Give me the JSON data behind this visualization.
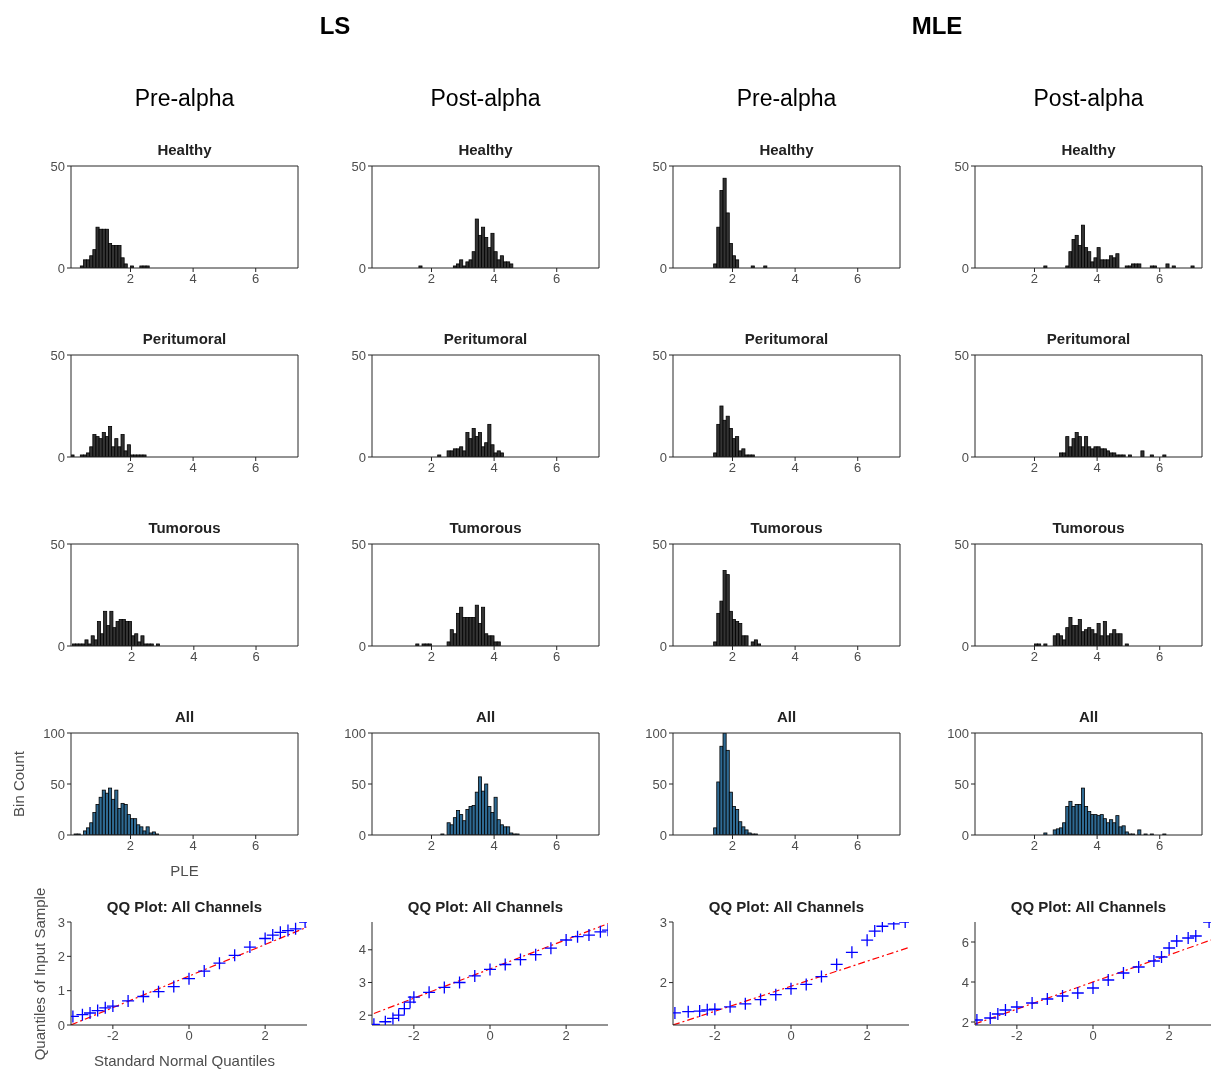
{
  "chart_data": [
    {
      "type": "histogram",
      "title": "Healthy",
      "annotations": [
        "LS",
        "Pre-alpha"
      ],
      "bins": [
        0.4,
        0.5,
        0.6,
        0.7,
        0.8,
        0.9,
        1.0,
        1.1,
        1.2,
        1.3,
        1.4,
        1.5,
        1.6,
        1.7,
        1.8,
        1.9,
        2.0,
        2.1,
        2.2,
        2.3,
        2.4,
        2.5,
        2.6
      ],
      "values": [
        1,
        4,
        4,
        6,
        9,
        20,
        19,
        19,
        19,
        12,
        11,
        11,
        11,
        5,
        2,
        0,
        1,
        0,
        0,
        1,
        1,
        1
      ],
      "color": "#333333",
      "xlim": [
        0.1,
        7.35
      ],
      "xticks": [
        2,
        4,
        6
      ],
      "ylim": [
        0,
        50
      ],
      "yticks": [
        0,
        50
      ]
    },
    {
      "type": "histogram",
      "title": "Healthy",
      "annotations": [
        "Post-alpha"
      ],
      "bins": [
        1.6,
        1.7,
        1.8,
        1.9,
        2.0,
        2.1,
        2.2,
        2.3,
        2.4,
        2.5,
        2.6,
        2.7,
        2.8,
        2.9,
        3.0,
        3.1,
        3.2,
        3.3,
        3.4,
        3.5,
        3.6,
        3.7,
        3.8,
        3.9,
        4.0,
        4.1,
        4.2,
        4.3,
        4.4,
        4.5,
        4.6
      ],
      "values": [
        1,
        0,
        0,
        0,
        0,
        0,
        0,
        0,
        0,
        0,
        0,
        1,
        2,
        4,
        1,
        3,
        4,
        8,
        24,
        16,
        20,
        15,
        10,
        17,
        8,
        4,
        6,
        3,
        3,
        2
      ],
      "color": "#333333",
      "xlim": [
        0.1,
        7.35
      ],
      "xticks": [
        2,
        4,
        6
      ],
      "ylim": [
        0,
        50
      ],
      "yticks": [
        0,
        50
      ]
    },
    {
      "type": "histogram",
      "title": "Healthy",
      "annotations": [
        "MLE",
        "Pre-alpha"
      ],
      "bins": [
        1.4,
        1.5,
        1.6,
        1.7,
        1.8,
        1.9,
        2.0,
        2.1,
        2.2,
        2.3,
        2.4,
        2.5,
        2.6,
        2.7,
        2.8,
        2.9,
        3.0,
        3.1
      ],
      "values": [
        2,
        20,
        38,
        44,
        27,
        12,
        6,
        4,
        0,
        0,
        0,
        0,
        1,
        0,
        0,
        0,
        1
      ],
      "color": "#333333",
      "xlim": [
        0.1,
        7.35
      ],
      "xticks": [
        2,
        4,
        6
      ],
      "ylim": [
        0,
        50
      ],
      "yticks": [
        0,
        50
      ]
    },
    {
      "type": "histogram",
      "title": "Healthy",
      "annotations": [
        "Post-alpha"
      ],
      "bins": [
        2.3,
        2.4,
        2.5,
        2.6,
        2.7,
        2.8,
        2.9,
        3.0,
        3.1,
        3.2,
        3.3,
        3.4,
        3.5,
        3.6,
        3.7,
        3.8,
        3.9,
        4.0,
        4.1,
        4.2,
        4.3,
        4.4,
        4.5,
        4.6,
        4.7,
        4.8,
        4.9,
        5.0,
        5.1,
        5.2,
        5.3,
        5.4,
        5.5,
        5.6,
        5.7,
        5.8,
        5.9,
        6.0,
        6.1,
        6.2,
        6.3,
        6.4,
        6.5,
        6.6,
        6.7,
        6.8,
        6.9,
        7.0,
        7.1
      ],
      "values": [
        1,
        0,
        0,
        0,
        0,
        0,
        0,
        1,
        8,
        14,
        16,
        11,
        21,
        10,
        8,
        3,
        5,
        10,
        4,
        4,
        4,
        6,
        5,
        7,
        0,
        0,
        1,
        1,
        2,
        2,
        2,
        0,
        0,
        0,
        1,
        1,
        0,
        0,
        0,
        2,
        0,
        1,
        0,
        0,
        0,
        0,
        0,
        1
      ],
      "color": "#333333",
      "xlim": [
        0.1,
        7.35
      ],
      "xticks": [
        2,
        4,
        6
      ],
      "ylim": [
        0,
        50
      ],
      "yticks": [
        0,
        50
      ]
    },
    {
      "type": "histogram",
      "title": "Peritumoral",
      "bins": [
        0.1,
        0.2,
        0.3,
        0.4,
        0.5,
        0.6,
        0.7,
        0.8,
        0.9,
        1.0,
        1.1,
        1.2,
        1.3,
        1.4,
        1.5,
        1.6,
        1.7,
        1.8,
        1.9,
        2.0,
        2.1,
        2.2,
        2.3,
        2.4,
        2.5
      ],
      "values": [
        1,
        0,
        0,
        1,
        1,
        2,
        5,
        11,
        10,
        9,
        12,
        10,
        15,
        5,
        9,
        5,
        11,
        3,
        6,
        1,
        1,
        1,
        1,
        1
      ],
      "color": "#333333",
      "xlim": [
        0.1,
        7.35
      ],
      "xticks": [
        2,
        4,
        6
      ],
      "ylim": [
        0,
        50
      ],
      "yticks": [
        0,
        50
      ]
    },
    {
      "type": "histogram",
      "title": "Peritumoral",
      "bins": [
        2.2,
        2.3,
        2.4,
        2.5,
        2.6,
        2.7,
        2.8,
        2.9,
        3.0,
        3.1,
        3.2,
        3.3,
        3.4,
        3.5,
        3.6,
        3.7,
        3.8,
        3.9,
        4.0,
        4.1,
        4.2,
        4.3
      ],
      "values": [
        1,
        0,
        0,
        3,
        3,
        4,
        4,
        5,
        3,
        12,
        9,
        14,
        10,
        12,
        5,
        7,
        16,
        6,
        2,
        3,
        2
      ],
      "color": "#333333",
      "xlim": [
        0.1,
        7.35
      ],
      "xticks": [
        2,
        4,
        6
      ],
      "ylim": [
        0,
        50
      ],
      "yticks": [
        0,
        50
      ]
    },
    {
      "type": "histogram",
      "title": "Peritumoral",
      "bins": [
        1.4,
        1.5,
        1.6,
        1.7,
        1.8,
        1.9,
        2.0,
        2.1,
        2.2,
        2.3,
        2.4,
        2.5,
        2.6,
        2.7
      ],
      "values": [
        2,
        16,
        25,
        18,
        20,
        14,
        9,
        10,
        3,
        4,
        1,
        1,
        1
      ],
      "color": "#333333",
      "xlim": [
        0.1,
        7.35
      ],
      "xticks": [
        2,
        4,
        6
      ],
      "ylim": [
        0,
        50
      ],
      "yticks": [
        0,
        50
      ]
    },
    {
      "type": "histogram",
      "title": "Peritumoral",
      "bins": [
        2.8,
        2.9,
        3.0,
        3.1,
        3.2,
        3.3,
        3.4,
        3.5,
        3.6,
        3.7,
        3.8,
        3.9,
        4.0,
        4.1,
        4.2,
        4.3,
        4.4,
        4.5,
        4.6,
        4.7,
        4.8,
        4.9,
        5.0,
        5.1,
        5.2,
        5.3,
        5.4,
        5.5,
        5.6,
        5.7,
        5.8,
        5.9,
        6.0,
        6.1,
        6.2
      ],
      "values": [
        2,
        2,
        10,
        5,
        9,
        12,
        10,
        5,
        10,
        5,
        4,
        5,
        5,
        4,
        4,
        3,
        2,
        2,
        1,
        1,
        1,
        0,
        1,
        0,
        0,
        0,
        3,
        0,
        0,
        1,
        0,
        0,
        0,
        1
      ],
      "color": "#333333",
      "xlim": [
        0.1,
        7.35
      ],
      "xticks": [
        2,
        4,
        6
      ],
      "ylim": [
        0,
        50
      ],
      "yticks": [
        0,
        50
      ]
    },
    {
      "type": "histogram",
      "title": "Tumorous",
      "bins": [
        0.1,
        0.2,
        0.3,
        0.4,
        0.5,
        0.6,
        0.7,
        0.8,
        0.9,
        1.0,
        1.1,
        1.2,
        1.3,
        1.4,
        1.5,
        1.6,
        1.7,
        1.8,
        1.9,
        2.0,
        2.1,
        2.2,
        2.3,
        2.4,
        2.5,
        2.6,
        2.7,
        2.8,
        2.9
      ],
      "values": [
        1,
        1,
        1,
        1,
        3,
        1,
        5,
        3,
        12,
        6,
        17,
        10,
        17,
        9,
        12,
        13,
        13,
        12,
        12,
        5,
        6,
        2,
        5,
        1,
        1,
        1,
        0,
        1
      ],
      "color": "#333333",
      "xlim": [
        0.05,
        7.35
      ],
      "xticks": [
        2,
        4,
        6
      ],
      "ylim": [
        0,
        50
      ],
      "yticks": [
        0,
        50
      ]
    },
    {
      "type": "histogram",
      "title": "Tumorous",
      "bins": [
        1.5,
        1.6,
        1.7,
        1.8,
        1.9,
        2.0,
        2.1,
        2.2,
        2.3,
        2.4,
        2.5,
        2.6,
        2.7,
        2.8,
        2.9,
        3.0,
        3.1,
        3.2,
        3.3,
        3.4,
        3.5,
        3.6,
        3.7,
        3.8,
        3.9,
        4.0,
        4.1,
        4.2
      ],
      "values": [
        1,
        0,
        1,
        1,
        1,
        0,
        0,
        0,
        0,
        0,
        2,
        8,
        6,
        16,
        19,
        14,
        14,
        14,
        14,
        20,
        11,
        19,
        6,
        5,
        5,
        2,
        2
      ],
      "color": "#333333",
      "xlim": [
        0.1,
        7.35
      ],
      "xticks": [
        2,
        4,
        6
      ],
      "ylim": [
        0,
        50
      ],
      "yticks": [
        0,
        50
      ]
    },
    {
      "type": "histogram",
      "title": "Tumorous",
      "bins": [
        1.4,
        1.5,
        1.6,
        1.7,
        1.8,
        1.9,
        2.0,
        2.1,
        2.2,
        2.3,
        2.4,
        2.5,
        2.6,
        2.7,
        2.8,
        2.9
      ],
      "values": [
        2,
        16,
        22,
        37,
        35,
        17,
        13,
        12,
        11,
        5,
        5,
        0,
        2,
        3,
        1
      ],
      "color": "#333333",
      "xlim": [
        0.1,
        7.35
      ],
      "xticks": [
        2,
        4,
        6
      ],
      "ylim": [
        0,
        50
      ],
      "yticks": [
        0,
        50
      ]
    },
    {
      "type": "histogram",
      "title": "Tumorous",
      "bins": [
        2.0,
        2.1,
        2.2,
        2.3,
        2.4,
        2.5,
        2.6,
        2.7,
        2.8,
        2.9,
        3.0,
        3.1,
        3.2,
        3.3,
        3.4,
        3.5,
        3.6,
        3.7,
        3.8,
        3.9,
        4.0,
        4.1,
        4.2,
        4.3,
        4.4,
        4.5,
        4.6,
        4.7,
        4.8,
        4.9,
        5.0
      ],
      "values": [
        1,
        1,
        0,
        1,
        0,
        0,
        5,
        6,
        5,
        3,
        9,
        14,
        10,
        10,
        13,
        7,
        8,
        9,
        8,
        6,
        11,
        5,
        12,
        5,
        6,
        8,
        6,
        6,
        0,
        1
      ],
      "color": "#333333",
      "xlim": [
        0.1,
        7.35
      ],
      "xticks": [
        2,
        4,
        6
      ],
      "ylim": [
        0,
        50
      ],
      "yticks": [
        0,
        50
      ]
    },
    {
      "type": "histogram",
      "title": "All",
      "xlabel": "PLE",
      "ylabel": "Bin Count",
      "bins": [
        0.2,
        0.3,
        0.4,
        0.5,
        0.6,
        0.7,
        0.8,
        0.9,
        1.0,
        1.1,
        1.2,
        1.3,
        1.4,
        1.5,
        1.6,
        1.7,
        1.8,
        1.9,
        2.0,
        2.1,
        2.2,
        2.3,
        2.4,
        2.5,
        2.6,
        2.7,
        2.8,
        2.9
      ],
      "values": [
        1,
        1,
        0,
        4,
        7,
        12,
        22,
        30,
        37,
        44,
        41,
        46,
        35,
        44,
        26,
        31,
        30,
        20,
        16,
        16,
        10,
        8,
        4,
        8,
        2,
        3,
        1
      ],
      "color": "#2f6a93",
      "xlim": [
        0.1,
        7.35
      ],
      "xticks": [
        2,
        4,
        6
      ],
      "ylim": [
        0,
        100
      ],
      "yticks": [
        0,
        50,
        100
      ]
    },
    {
      "type": "histogram",
      "title": "All",
      "bins": [
        2.3,
        2.4,
        2.5,
        2.6,
        2.7,
        2.8,
        2.9,
        3.0,
        3.1,
        3.2,
        3.3,
        3.4,
        3.5,
        3.6,
        3.7,
        3.8,
        3.9,
        4.0,
        4.1,
        4.2,
        4.3,
        4.4,
        4.5,
        4.6,
        4.7,
        4.8
      ],
      "values": [
        1,
        0,
        12,
        10,
        17,
        24,
        20,
        14,
        25,
        28,
        29,
        42,
        57,
        43,
        50,
        28,
        22,
        37,
        15,
        10,
        8,
        8,
        2,
        1,
        1
      ],
      "color": "#2f6a93",
      "xlim": [
        0.1,
        7.35
      ],
      "xticks": [
        2,
        4,
        6
      ],
      "ylim": [
        0,
        100
      ],
      "yticks": [
        0,
        50,
        100
      ]
    },
    {
      "type": "histogram",
      "title": "All",
      "bins": [
        1.4,
        1.5,
        1.6,
        1.7,
        1.8,
        1.9,
        2.0,
        2.1,
        2.2,
        2.3,
        2.4,
        2.5,
        2.6,
        2.7,
        2.8
      ],
      "values": [
        7,
        52,
        87,
        100,
        83,
        42,
        28,
        25,
        13,
        8,
        5,
        2,
        1,
        1
      ],
      "color": "#2f6a93",
      "xlim": [
        0.1,
        7.35
      ],
      "xticks": [
        2,
        4,
        6
      ],
      "ylim": [
        0,
        100
      ],
      "yticks": [
        0,
        50,
        100
      ]
    },
    {
      "type": "histogram",
      "title": "All",
      "bins": [
        2.3,
        2.4,
        2.5,
        2.6,
        2.7,
        2.8,
        2.9,
        3.0,
        3.1,
        3.2,
        3.3,
        3.4,
        3.5,
        3.6,
        3.7,
        3.8,
        3.9,
        4.0,
        4.1,
        4.2,
        4.3,
        4.4,
        4.5,
        4.6,
        4.7,
        4.8,
        4.9,
        5.0,
        5.1,
        5.2,
        5.3,
        5.4,
        5.5,
        5.6,
        5.7,
        5.8,
        5.9,
        6.0,
        6.1,
        6.2
      ],
      "values": [
        2,
        0,
        0,
        5,
        6,
        7,
        12,
        28,
        33,
        28,
        30,
        30,
        46,
        28,
        23,
        20,
        20,
        19,
        20,
        16,
        12,
        15,
        12,
        19,
        8,
        9,
        3,
        1,
        1,
        0,
        5,
        0,
        1,
        0,
        1,
        0,
        0,
        0,
        1
      ],
      "color": "#2f6a93",
      "xlim": [
        0.1,
        7.35
      ],
      "xticks": [
        2,
        4,
        6
      ],
      "ylim": [
        0,
        100
      ],
      "yticks": [
        0,
        50,
        100
      ]
    },
    {
      "type": "scatter",
      "title": "QQ Plot: All Channels",
      "xlabel": "Standard Normal Quantiles",
      "ylabel": "Quantiles of Input Sample",
      "series": [
        {
          "type": "scatter",
          "marker": "cross",
          "color": "#0000ff",
          "x": [
            -3.05,
            -2.8,
            -2.6,
            -2.4,
            -2.2,
            -2,
            -1.6,
            -1.2,
            -0.8,
            -0.4,
            0,
            0.4,
            0.8,
            1.2,
            1.6,
            2,
            2.2,
            2.4,
            2.6,
            2.8,
            3.05
          ],
          "values": [
            0.25,
            0.3,
            0.35,
            0.42,
            0.5,
            0.55,
            0.7,
            0.83,
            0.97,
            1.12,
            1.35,
            1.57,
            1.8,
            2.03,
            2.27,
            2.52,
            2.62,
            2.7,
            2.75,
            2.8,
            3.0
          ]
        },
        {
          "type": "line",
          "color": "#ff0000",
          "line_style": "dashed",
          "x": [
            -3.1,
            3.1
          ],
          "values": [
            0,
            2.85
          ]
        }
      ],
      "xlim": [
        -3.1,
        3.1
      ],
      "xticks": [
        -2,
        0,
        2
      ],
      "ylim": [
        0,
        3
      ],
      "yticks": [
        0,
        1,
        2,
        3
      ]
    },
    {
      "type": "scatter",
      "title": "QQ Plot: All Channels",
      "series": [
        {
          "type": "scatter",
          "marker": "cross",
          "color": "#0000ff",
          "x": [
            -3.05,
            -2.75,
            -2.55,
            -2.4,
            -2.25,
            -2.1,
            -2,
            -1.6,
            -1.2,
            -0.8,
            -0.4,
            0,
            0.4,
            0.8,
            1.2,
            1.6,
            2,
            2.3,
            2.6,
            2.9,
            3.1
          ],
          "values": [
            1.72,
            1.8,
            1.9,
            2.0,
            2.2,
            2.4,
            2.55,
            2.7,
            2.85,
            3.0,
            3.2,
            3.4,
            3.55,
            3.7,
            3.85,
            4.05,
            4.3,
            4.4,
            4.45,
            4.55,
            4.6
          ]
        },
        {
          "type": "line",
          "color": "#ff0000",
          "line_style": "dashed",
          "x": [
            -3.05,
            3.1
          ],
          "values": [
            2.05,
            4.8
          ]
        }
      ],
      "xlim": [
        -3.1,
        3.1
      ],
      "xticks": [
        -2,
        0,
        2
      ],
      "ylim": [
        1.7,
        4.85
      ],
      "yticks": [
        2,
        3,
        4
      ]
    },
    {
      "type": "scatter",
      "title": "QQ Plot: All Channels",
      "series": [
        {
          "type": "scatter",
          "marker": "cross",
          "color": "#0000ff",
          "x": [
            -3.05,
            -2.7,
            -2.4,
            -2.2,
            -2,
            -1.6,
            -1.2,
            -0.8,
            -0.4,
            0,
            0.4,
            0.8,
            1.2,
            1.6,
            2,
            2.2,
            2.4,
            2.7,
            3.0
          ],
          "values": [
            1.5,
            1.52,
            1.53,
            1.55,
            1.56,
            1.6,
            1.65,
            1.72,
            1.8,
            1.9,
            1.97,
            2.1,
            2.3,
            2.5,
            2.7,
            2.85,
            2.93,
            2.97,
            3.0
          ]
        },
        {
          "type": "line",
          "color": "#ff0000",
          "line_style": "dashed",
          "x": [
            -3.1,
            3.1
          ],
          "values": [
            1.3,
            2.58
          ]
        }
      ],
      "xlim": [
        -3.1,
        3.1
      ],
      "xticks": [
        -2,
        0,
        2
      ],
      "ylim": [
        1.3,
        3
      ],
      "yticks": [
        2,
        3
      ]
    },
    {
      "type": "scatter",
      "title": "QQ Plot: All Channels",
      "series": [
        {
          "type": "scatter",
          "marker": "cross",
          "color": "#0000ff",
          "x": [
            -3.05,
            -2.7,
            -2.5,
            -2.3,
            -2,
            -1.6,
            -1.2,
            -0.8,
            -0.4,
            0,
            0.4,
            0.8,
            1.2,
            1.6,
            1.8,
            2,
            2.2,
            2.5,
            2.7,
            3.05
          ],
          "values": [
            2.1,
            2.2,
            2.4,
            2.6,
            2.75,
            2.95,
            3.15,
            3.3,
            3.45,
            3.7,
            4.1,
            4.45,
            4.75,
            5.05,
            5.25,
            5.7,
            6.05,
            6.2,
            6.3,
            7.0
          ]
        },
        {
          "type": "line",
          "color": "#ff0000",
          "line_style": "dashed",
          "x": [
            -3.1,
            3.1
          ],
          "values": [
            1.9,
            6.1
          ]
        }
      ],
      "xlim": [
        -3.1,
        3.1
      ],
      "xticks": [
        -2,
        0,
        2
      ],
      "ylim": [
        1.85,
        7
      ],
      "yticks": [
        2,
        4,
        6
      ]
    }
  ]
}
